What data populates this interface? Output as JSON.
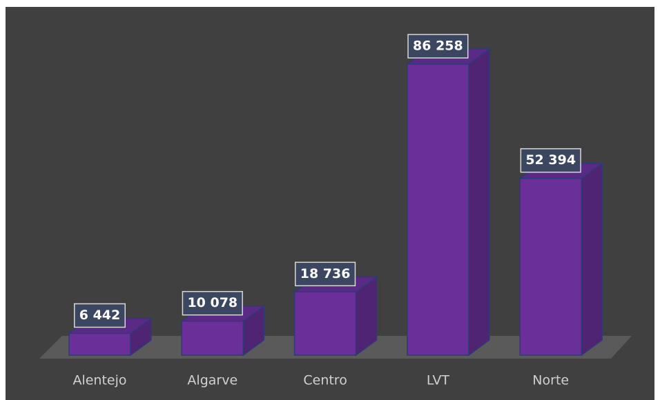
{
  "chart_data": {
    "type": "bar3d",
    "categories": [
      "Alentejo",
      "Algarve",
      "Centro",
      "LVT",
      "Norte"
    ],
    "values": [
      6442,
      10078,
      18736,
      86258,
      52394
    ],
    "value_labels": [
      "6 442",
      "10 078",
      "18 736",
      "86 258",
      "52 394"
    ],
    "color": "#6b2f9a"
  }
}
